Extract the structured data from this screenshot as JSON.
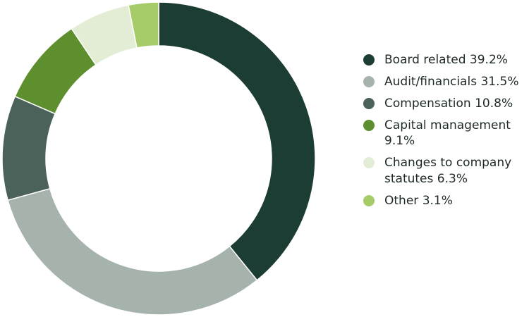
{
  "chart_data": {
    "type": "donut",
    "categories": [
      "Board related",
      "Audit/financials",
      "Compensation",
      "Capital management",
      "Changes to company statutes",
      "Other"
    ],
    "values": [
      39.2,
      31.5,
      10.8,
      9.1,
      6.3,
      3.1
    ],
    "value_labels": [
      "39.2%",
      "31.5%",
      "10.8%",
      "9.1%",
      "6.3%",
      "3.1%"
    ],
    "colors": [
      "#1b3d33",
      "#a6b3ac",
      "#4a625a",
      "#5e8f2e",
      "#e3edd6",
      "#a6cc6a"
    ]
  }
}
